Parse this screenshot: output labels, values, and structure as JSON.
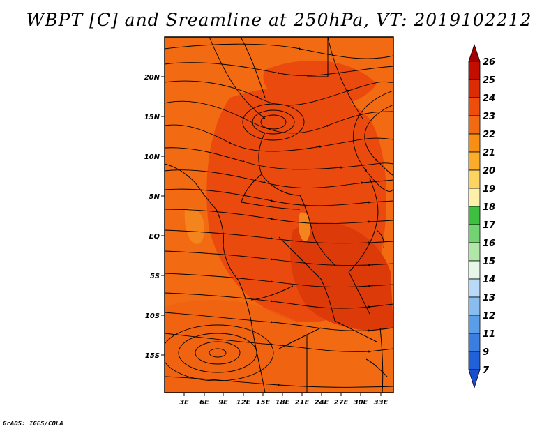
{
  "header": {
    "title": "WBPT [C] and Sreamline at 250hPa, VT: 2019102212"
  },
  "footer": {
    "credit": "GrADS: IGES/COLA"
  },
  "map": {
    "lat_labels": [
      "20N",
      "15N",
      "10N",
      "5N",
      "EQ",
      "5S",
      "10S",
      "15S"
    ],
    "lon_labels": [
      "3E",
      "6E",
      "9E",
      "12E",
      "15E",
      "18E",
      "21E",
      "24E",
      "27E",
      "30E",
      "33E"
    ],
    "fill_colors": {
      "base": "#f26a12",
      "warm": "#ea4a0d",
      "warmer": "#dd3a0a",
      "light": "#f4841c"
    }
  },
  "colorbar": {
    "labels": [
      "26",
      "25",
      "24",
      "23",
      "22",
      "21",
      "20",
      "19",
      "18",
      "17",
      "16",
      "15",
      "14",
      "13",
      "12",
      "11",
      "9",
      "7"
    ],
    "colors": [
      "#a50000",
      "#c30d00",
      "#dc2c05",
      "#ee4d0c",
      "#f26a12",
      "#f88e12",
      "#fbad29",
      "#fdd362",
      "#fef0a8",
      "#3fbf3f",
      "#73d373",
      "#b0e6a8",
      "#e6f7ea",
      "#b8d9f7",
      "#89bdf0",
      "#5b9ee8",
      "#3a7ee2",
      "#2060d8"
    ]
  }
}
